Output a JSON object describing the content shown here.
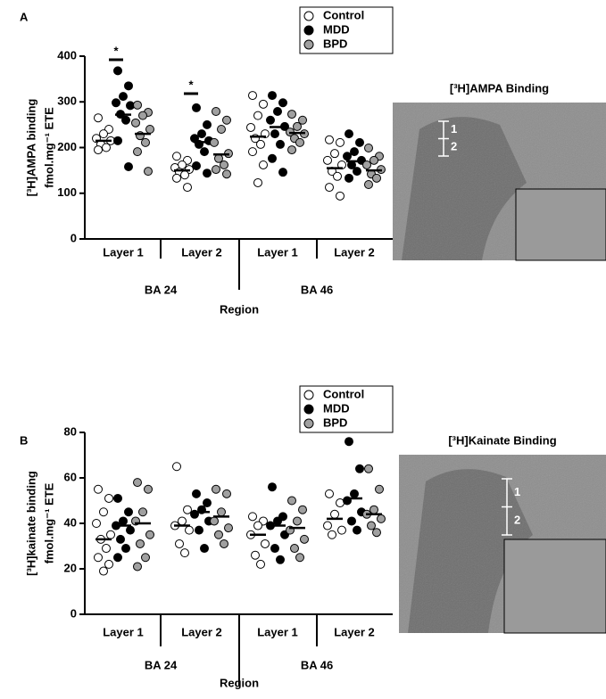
{
  "chart_data": [
    {
      "type": "dotplot",
      "panel": "A",
      "ylabel": [
        "[³H]AMPA binding",
        "fmol.mg⁻¹ ETE"
      ],
      "xlabel": "Region",
      "categories": [
        "Layer 1",
        "Layer 2",
        "Layer 1",
        "Layer 2"
      ],
      "groups": [
        "BA 24",
        "BA 46"
      ],
      "ylim": [
        0,
        400
      ],
      "yticks": [
        0,
        100,
        200,
        300,
        400
      ],
      "series": [
        {
          "name": "Control",
          "color": "#ffffff",
          "values": [
            [
              265,
              240,
              230,
              220,
              215,
              207,
              200,
              195
            ],
            [
              181,
              172,
              162,
              156,
              152,
              146,
              140,
              133,
              113
            ],
            [
              314,
              295,
              270,
              244,
              230,
              220,
              207,
              191,
              162,
              123
            ],
            [
              217,
              211,
              187,
              172,
              162,
              148,
              137,
              113,
              94
            ]
          ],
          "means": [
            215,
            150,
            224,
            155
          ]
        },
        {
          "name": "MDD",
          "color": "#000000",
          "values": [
            [
              368,
              335,
              312,
              298,
              292,
              273,
              260,
              215,
              158
            ],
            [
              287,
              250,
              230,
              220,
              215,
              207,
              191,
              160,
              144
            ],
            [
              314,
              298,
              279,
              260,
              246,
              230,
              207,
              176,
              146
            ],
            [
              230,
              211,
              191,
              181,
              172,
              162,
              148,
              133
            ]
          ],
          "means": [
            272,
            212,
            245,
            170
          ]
        },
        {
          "name": "BPD",
          "color": "#a0a0a0",
          "values": [
            [
              293,
              277,
              270,
              254,
              240,
              226,
              211,
              191,
              148
            ],
            [
              279,
              260,
              240,
              211,
              187,
              176,
              162,
              152,
              142
            ],
            [
              273,
              260,
              246,
              234,
              230,
              220,
              211,
              195
            ],
            [
              199,
              181,
              172,
              162,
              152,
              142,
              133,
              119
            ]
          ],
          "means": [
            230,
            185,
            232,
            150
          ]
        }
      ],
      "annotations": [
        {
          "text": "*"
        },
        {
          "text": "*"
        }
      ],
      "image": {
        "title": "[³H]AMPA Binding",
        "labels": [
          "1",
          "2"
        ]
      }
    },
    {
      "type": "dotplot",
      "panel": "B",
      "ylabel": [
        "[³H]kainate binding",
        "fmol.mg⁻¹ ETE"
      ],
      "xlabel": "Region",
      "categories": [
        "Layer 1",
        "Layer 2",
        "Layer 1",
        "Layer 2"
      ],
      "groups": [
        "BA 24",
        "BA 46"
      ],
      "ylim": [
        0,
        80
      ],
      "yticks": [
        0,
        20,
        40,
        60,
        80
      ],
      "series": [
        {
          "name": "Control",
          "color": "#ffffff",
          "values": [
            [
              55,
              51,
              45,
              40,
              35,
              33,
              29,
              25,
              22,
              19
            ],
            [
              65,
              46,
              41,
              39,
              37,
              31,
              27
            ],
            [
              43,
              41,
              39,
              35,
              31,
              26,
              22
            ],
            [
              53,
              49,
              44,
              39,
              37,
              35
            ]
          ],
          "means": [
            33,
            39,
            35,
            42
          ]
        },
        {
          "name": "MDD",
          "color": "#000000",
          "values": [
            [
              51,
              45,
              41,
              39,
              37,
              33,
              29,
              25
            ],
            [
              53,
              49,
              46,
              44,
              41,
              37,
              29
            ],
            [
              56,
              43,
              41,
              39,
              35,
              29,
              24
            ],
            [
              76,
              64,
              53,
              50,
              45,
              41,
              37
            ]
          ],
          "means": [
            39,
            45,
            39,
            51
          ]
        },
        {
          "name": "BPD",
          "color": "#a0a0a0",
          "values": [
            [
              58,
              55,
              45,
              41,
              35,
              31,
              25,
              21
            ],
            [
              55,
              53,
              45,
              41,
              38,
              35,
              31
            ],
            [
              50,
              46,
              41,
              37,
              33,
              29,
              25
            ],
            [
              64,
              55,
              46,
              44,
              42,
              39,
              36
            ]
          ],
          "means": [
            40,
            43,
            38,
            44
          ]
        }
      ],
      "image": {
        "title": "[³H]Kainate Binding",
        "labels": [
          "1",
          "2"
        ]
      }
    }
  ]
}
